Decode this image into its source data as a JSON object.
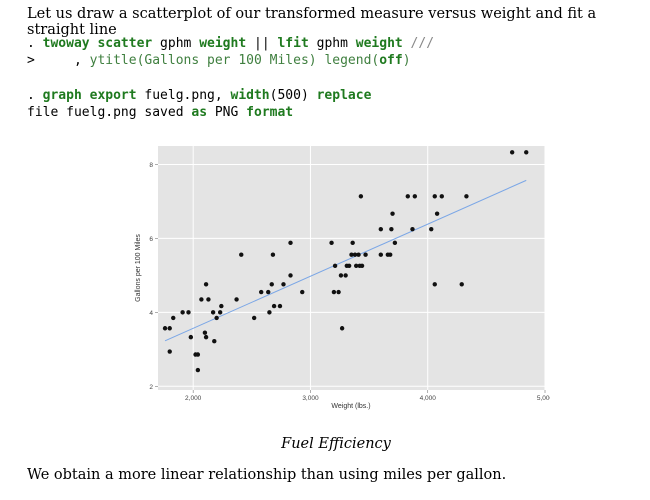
{
  "intro": "Let us draw a scatterplot of our transformed measure versus weight and fit a straight line",
  "code1": {
    "l1": {
      "prompt": ". ",
      "cmd1": "twoway scatter",
      "v1": " gphm ",
      "v2": "weight",
      "sep": " || ",
      "cmd2": "lfit",
      "v3": " gphm ",
      "v4": "weight",
      "cont": " ///"
    },
    "l2": {
      "prompt": ">     , ",
      "opt1": "ytitle",
      "arg1": "(Gallons per 100 Miles) ",
      "opt2": "legend",
      "arg2": "(",
      "arg3": "off",
      "arg4": ")"
    }
  },
  "code2": {
    "l1": {
      "prompt": ". ",
      "cmd": "graph export",
      "f": " fuelg.png, ",
      "opt": "width",
      "arg": "(500) ",
      "rep": "replace"
    },
    "l2": {
      "a": "file fuelg.png saved ",
      "b": "as",
      "c": " PNG ",
      "d": "format"
    }
  },
  "caption": "Fuel Efficiency",
  "outro": "We obtain a more linear relationship than using miles per gallon.",
  "chart_data": {
    "type": "scatter",
    "xlabel": "Weight (lbs.)",
    "ylabel": "Gallons per 100 Miles",
    "xlim": [
      1700,
      5000
    ],
    "ylim": [
      1.9,
      8.5
    ],
    "xticks": [
      {
        "v": 2000,
        "label": "2,000"
      },
      {
        "v": 3000,
        "label": "3,000"
      },
      {
        "v": 4000,
        "label": "4,000"
      },
      {
        "v": 5000,
        "label": "5,000"
      }
    ],
    "yticks": [
      {
        "v": 2,
        "label": "2"
      },
      {
        "v": 4,
        "label": "4"
      },
      {
        "v": 6,
        "label": "6"
      },
      {
        "v": 8,
        "label": "8"
      }
    ],
    "points": [
      [
        1760,
        3.57
      ],
      [
        1800,
        3.57
      ],
      [
        1800,
        2.94
      ],
      [
        1830,
        3.85
      ],
      [
        1910,
        4.0
      ],
      [
        1960,
        4.0
      ],
      [
        1980,
        3.33
      ],
      [
        2020,
        2.86
      ],
      [
        2040,
        2.86
      ],
      [
        2040,
        2.44
      ],
      [
        2070,
        4.35
      ],
      [
        2100,
        3.45
      ],
      [
        2110,
        3.33
      ],
      [
        2110,
        4.76
      ],
      [
        2130,
        4.35
      ],
      [
        2170,
        4.0
      ],
      [
        2180,
        3.22
      ],
      [
        2200,
        3.85
      ],
      [
        2230,
        4.0
      ],
      [
        2240,
        4.17
      ],
      [
        2370,
        4.35
      ],
      [
        2410,
        5.56
      ],
      [
        2520,
        3.85
      ],
      [
        2580,
        4.55
      ],
      [
        2640,
        4.55
      ],
      [
        2650,
        4.0
      ],
      [
        2670,
        4.76
      ],
      [
        2680,
        5.56
      ],
      [
        2690,
        4.17
      ],
      [
        2740,
        4.17
      ],
      [
        2770,
        4.76
      ],
      [
        2830,
        5.0
      ],
      [
        2830,
        5.88
      ],
      [
        2930,
        4.55
      ],
      [
        3180,
        5.88
      ],
      [
        3200,
        4.55
      ],
      [
        3210,
        5.26
      ],
      [
        3240,
        4.55
      ],
      [
        3260,
        5.0
      ],
      [
        3270,
        3.57
      ],
      [
        3300,
        5.0
      ],
      [
        3310,
        5.26
      ],
      [
        3330,
        5.26
      ],
      [
        3350,
        5.56
      ],
      [
        3360,
        5.88
      ],
      [
        3380,
        5.56
      ],
      [
        3390,
        5.26
      ],
      [
        3410,
        5.56
      ],
      [
        3420,
        5.26
      ],
      [
        3430,
        7.14
      ],
      [
        3440,
        5.26
      ],
      [
        3470,
        5.56
      ],
      [
        3600,
        5.56
      ],
      [
        3600,
        6.25
      ],
      [
        3660,
        5.56
      ],
      [
        3680,
        5.56
      ],
      [
        3690,
        6.25
      ],
      [
        3700,
        6.67
      ],
      [
        3720,
        5.88
      ],
      [
        3830,
        7.14
      ],
      [
        3870,
        6.25
      ],
      [
        3890,
        7.14
      ],
      [
        4030,
        6.25
      ],
      [
        4060,
        7.14
      ],
      [
        4060,
        4.76
      ],
      [
        4080,
        6.67
      ],
      [
        4120,
        7.14
      ],
      [
        4290,
        4.76
      ],
      [
        4330,
        7.14
      ],
      [
        4720,
        8.33
      ],
      [
        4840,
        8.33
      ]
    ],
    "fit": {
      "x": [
        1760,
        4840
      ],
      "y": [
        3.23,
        7.57
      ]
    }
  }
}
